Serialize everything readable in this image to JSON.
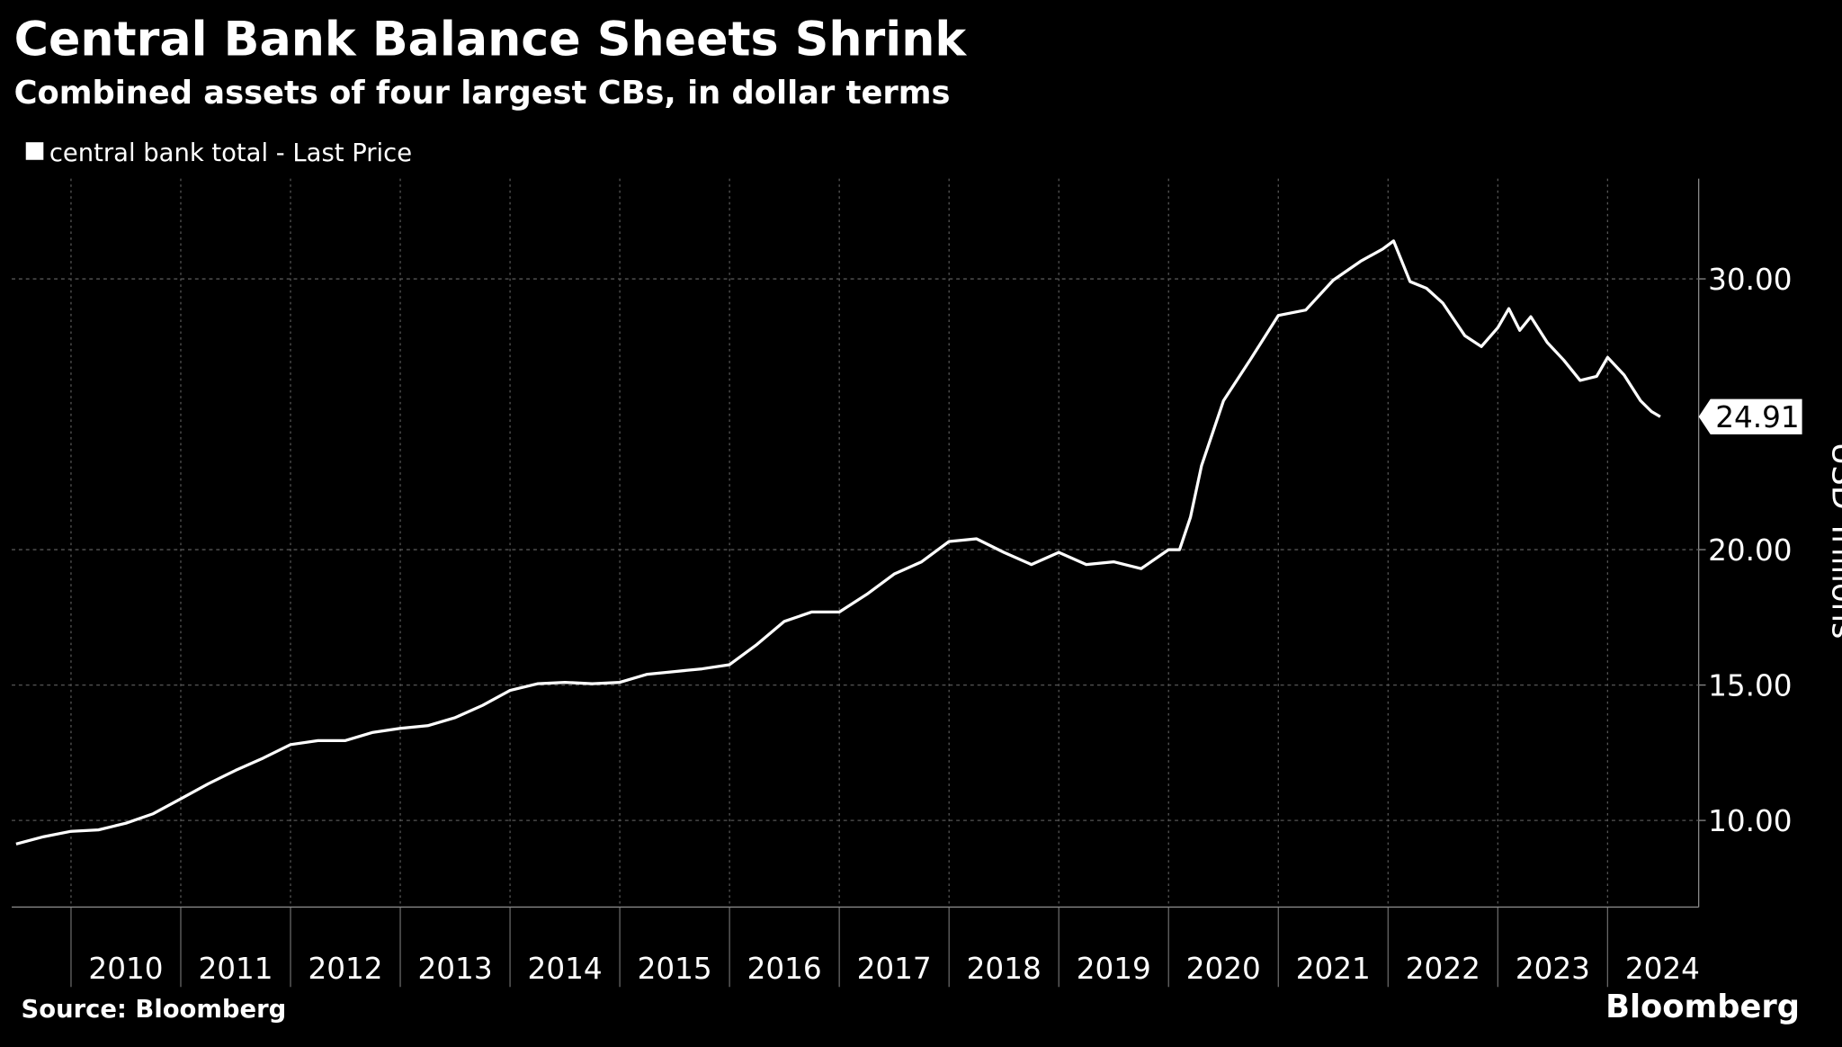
{
  "chart_data": {
    "type": "line",
    "title": "Central Bank Balance Sheets Shrink",
    "subtitle": "Combined assets of four largest CBs, in dollar terms",
    "y_label": "USD Trillions",
    "source": "Source: Bloomberg",
    "brand": "Bloomberg",
    "x": [
      2009.5,
      2009.75,
      2010.0,
      2010.25,
      2010.5,
      2010.75,
      2011.0,
      2011.25,
      2011.5,
      2011.75,
      2012.0,
      2012.25,
      2012.5,
      2012.75,
      2013.0,
      2013.25,
      2013.5,
      2013.75,
      2014.0,
      2014.25,
      2014.5,
      2014.75,
      2015.0,
      2015.25,
      2015.5,
      2015.75,
      2016.0,
      2016.25,
      2016.5,
      2016.75,
      2017.0,
      2017.25,
      2017.5,
      2017.75,
      2018.0,
      2018.25,
      2018.5,
      2018.75,
      2019.0,
      2019.25,
      2019.5,
      2019.75,
      2020.0,
      2020.1,
      2020.2,
      2020.3,
      2020.5,
      2020.75,
      2021.0,
      2021.25,
      2021.5,
      2021.75,
      2021.95,
      2022.05,
      2022.2,
      2022.35,
      2022.5,
      2022.7,
      2022.85,
      2023.0,
      2023.1,
      2023.2,
      2023.3,
      2023.45,
      2023.6,
      2023.75,
      2023.9,
      2024.0,
      2024.15,
      2024.3,
      2024.4,
      2024.48
    ],
    "series": [
      {
        "name": "central bank total - Last Price",
        "color": "#ffffff",
        "values": [
          9.13,
          9.4,
          9.6,
          9.65,
          9.9,
          10.25,
          10.8,
          11.35,
          11.85,
          12.3,
          12.8,
          12.95,
          12.95,
          13.25,
          13.4,
          13.5,
          13.8,
          14.25,
          14.8,
          15.05,
          15.1,
          15.05,
          15.1,
          15.4,
          15.5,
          15.6,
          15.75,
          16.5,
          17.35,
          17.7,
          17.7,
          18.35,
          19.1,
          19.55,
          20.3,
          20.4,
          19.9,
          19.45,
          19.9,
          19.45,
          19.55,
          19.3,
          20.0,
          20.0,
          21.2,
          23.1,
          25.5,
          27.05,
          28.65,
          28.85,
          29.95,
          30.65,
          31.1,
          31.4,
          29.9,
          29.65,
          29.1,
          27.9,
          27.5,
          28.2,
          28.9,
          28.1,
          28.6,
          27.65,
          27.0,
          26.25,
          26.4,
          27.1,
          26.45,
          25.5,
          25.1,
          24.91
        ]
      }
    ],
    "xlim": [
      2009.46,
      2024.83
    ],
    "xticks": [
      2010,
      2011,
      2012,
      2013,
      2014,
      2015,
      2016,
      2017,
      2018,
      2019,
      2020,
      2021,
      2022,
      2023,
      2024
    ],
    "ylim": [
      6.8,
      33.7
    ],
    "yticks": [
      {
        "value": 10,
        "label": "10.00"
      },
      {
        "value": 15,
        "label": "15.00"
      },
      {
        "value": 20,
        "label": "20.00"
      },
      {
        "value": 30,
        "label": "30.00"
      }
    ],
    "grid": true
  }
}
